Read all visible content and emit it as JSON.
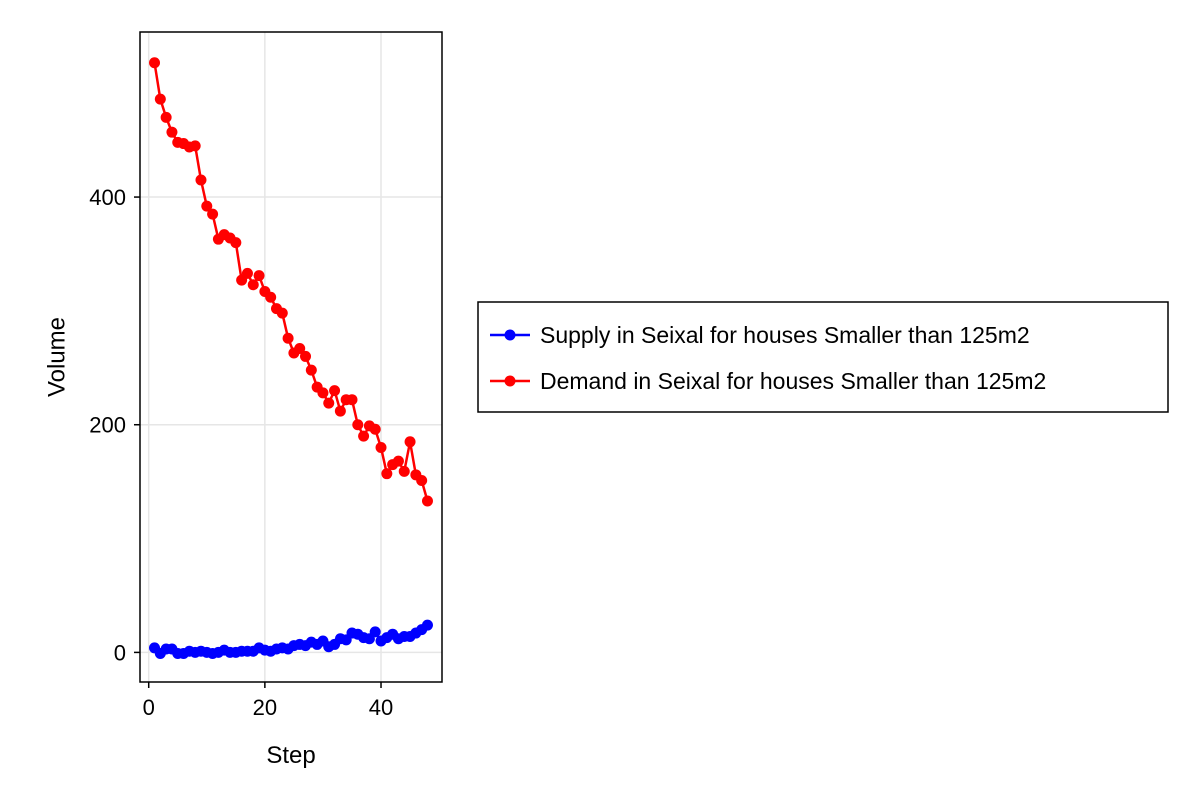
{
  "chart_data": {
    "type": "line",
    "title": "",
    "xlabel": "Step",
    "ylabel": "Volume",
    "xlim": [
      -1.5,
      50.5
    ],
    "ylim": [
      -26,
      545
    ],
    "xticks": [
      0,
      20,
      40
    ],
    "yticks": [
      0,
      200,
      400
    ],
    "grid": true,
    "legend_position": "right",
    "markers": true,
    "x": [
      1,
      2,
      3,
      4,
      5,
      6,
      7,
      8,
      9,
      10,
      11,
      12,
      13,
      14,
      15,
      16,
      17,
      18,
      19,
      20,
      21,
      22,
      23,
      24,
      25,
      26,
      27,
      28,
      29,
      30,
      31,
      32,
      33,
      34,
      35,
      36,
      37,
      38,
      39,
      40,
      41,
      42,
      43,
      44,
      45,
      46,
      47,
      48
    ],
    "series": [
      {
        "name": "Supply in Seixal for houses Smaller than 125m2",
        "color": "#0000ff",
        "values": [
          4,
          -1,
          3,
          3,
          -1,
          -1,
          1,
          0,
          1,
          0,
          -1,
          0,
          2,
          0,
          0,
          1,
          1,
          1,
          4,
          2,
          1,
          3,
          4,
          3,
          6,
          7,
          6,
          9,
          7,
          10,
          5,
          7,
          12,
          11,
          17,
          16,
          13,
          12,
          18,
          10,
          13,
          16,
          12,
          14,
          14,
          17,
          20,
          24
        ]
      },
      {
        "name": "Demand in Seixal for houses Smaller than 125m2",
        "color": "#ff0000",
        "values": [
          518,
          486,
          470,
          457,
          448,
          447,
          444,
          445,
          415,
          392,
          385,
          363,
          367,
          364,
          360,
          327,
          333,
          323,
          331,
          317,
          312,
          302,
          298,
          276,
          263,
          267,
          260,
          248,
          233,
          228,
          219,
          230,
          212,
          222,
          222,
          200,
          190,
          199,
          196,
          180,
          157,
          165,
          168,
          159,
          185,
          156,
          151,
          133
        ]
      }
    ]
  }
}
